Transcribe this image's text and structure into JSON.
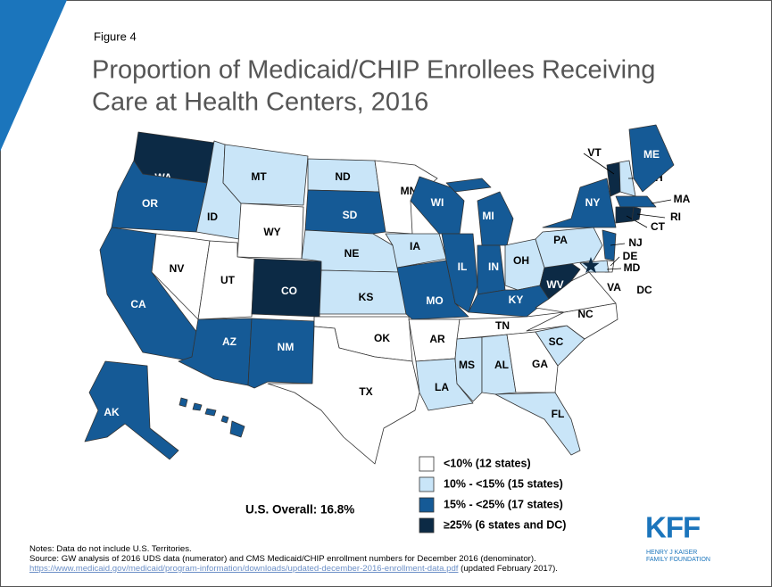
{
  "figure": "Figure 4",
  "title": [
    "Proportion of Medicaid/CHIP Enrollees Receiving",
    "Care at Health Centers, 2016"
  ],
  "legend": [
    {
      "label": "<10% (12 states)",
      "color": "#ffffff"
    },
    {
      "label": "10% - <15% (15 states)",
      "color": "#c9e5f8"
    },
    {
      "label": "15% - <25% (17 states)",
      "color": "#155a96"
    },
    {
      "label": "≥25% (6 states and DC)",
      "color": "#0c2a45"
    }
  ],
  "overall": "U.S. Overall: 16.8%",
  "states": [
    {
      "abbr": "WA",
      "bin": 3
    },
    {
      "abbr": "OR",
      "bin": 2
    },
    {
      "abbr": "CA",
      "bin": 2
    },
    {
      "abbr": "NV",
      "bin": 0
    },
    {
      "abbr": "ID",
      "bin": 1
    },
    {
      "abbr": "MT",
      "bin": 1
    },
    {
      "abbr": "WY",
      "bin": 0
    },
    {
      "abbr": "UT",
      "bin": 0
    },
    {
      "abbr": "CO",
      "bin": 3
    },
    {
      "abbr": "AZ",
      "bin": 2
    },
    {
      "abbr": "NM",
      "bin": 2
    },
    {
      "abbr": "ND",
      "bin": 1
    },
    {
      "abbr": "SD",
      "bin": 2
    },
    {
      "abbr": "NE",
      "bin": 1
    },
    {
      "abbr": "KS",
      "bin": 1
    },
    {
      "abbr": "OK",
      "bin": 0
    },
    {
      "abbr": "TX",
      "bin": 0
    },
    {
      "abbr": "MN",
      "bin": 0
    },
    {
      "abbr": "IA",
      "bin": 1
    },
    {
      "abbr": "MO",
      "bin": 2
    },
    {
      "abbr": "AR",
      "bin": 0
    },
    {
      "abbr": "LA",
      "bin": 1
    },
    {
      "abbr": "WI",
      "bin": 2
    },
    {
      "abbr": "IL",
      "bin": 2
    },
    {
      "abbr": "MI",
      "bin": 2
    },
    {
      "abbr": "IN",
      "bin": 2
    },
    {
      "abbr": "OH",
      "bin": 1
    },
    {
      "abbr": "KY",
      "bin": 2
    },
    {
      "abbr": "TN",
      "bin": 0
    },
    {
      "abbr": "MS",
      "bin": 1
    },
    {
      "abbr": "AL",
      "bin": 1
    },
    {
      "abbr": "GA",
      "bin": 0
    },
    {
      "abbr": "FL",
      "bin": 1
    },
    {
      "abbr": "SC",
      "bin": 1
    },
    {
      "abbr": "NC",
      "bin": 0
    },
    {
      "abbr": "VA",
      "bin": 0
    },
    {
      "abbr": "WV",
      "bin": 3
    },
    {
      "abbr": "PA",
      "bin": 1
    },
    {
      "abbr": "NY",
      "bin": 2
    },
    {
      "abbr": "NJ",
      "bin": 2
    },
    {
      "abbr": "DE",
      "bin": 0
    },
    {
      "abbr": "MD",
      "bin": 1
    },
    {
      "abbr": "VT",
      "bin": 3
    },
    {
      "abbr": "NH",
      "bin": 1
    },
    {
      "abbr": "ME",
      "bin": 2
    },
    {
      "abbr": "MA",
      "bin": 2
    },
    {
      "abbr": "CT",
      "bin": 3
    },
    {
      "abbr": "RI",
      "bin": 3
    },
    {
      "abbr": "AK",
      "bin": 2
    },
    {
      "abbr": "HI",
      "bin": 2
    },
    {
      "abbr": "DC",
      "bin": 3
    }
  ],
  "notes": "Notes: Data do not include U.S. Territories.",
  "source": "Source: GW analysis of 2016 UDS data (numerator) and CMS Medicaid/CHIP enrollment numbers for December 2016 (denominator).",
  "url": "https://www.medicaid.gov/medicaid/program-information/downloads/updated-december-2016-enrollment-data.pdf",
  "updated": "(updated February 2017).",
  "logo": {
    "mark": "KFF",
    "line1": "HENRY J KAISER",
    "line2": "FAMILY FOUNDATION"
  }
}
